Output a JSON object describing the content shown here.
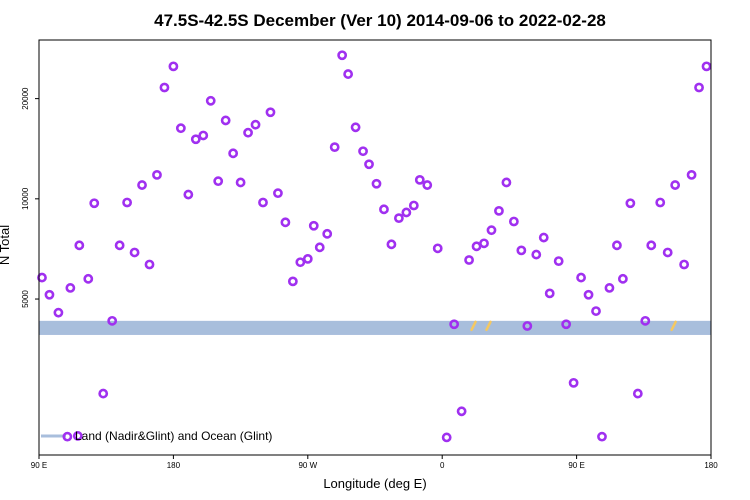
{
  "chart_data": {
    "type": "scatter",
    "title": "47.5S-42.5S December (Ver 10)   2014-09-06 to 2022-02-28",
    "xlabel": "Longitude (deg E)",
    "ylabel": "N Total",
    "x_tick_labels": [
      "90 E",
      "180",
      "90 W",
      "0",
      "90 E",
      "180"
    ],
    "y_tick_labels": [
      "5000",
      "10000",
      "20000"
    ],
    "y_scale": "log",
    "ylim": [
      1700,
      30000
    ],
    "grid": false,
    "legend": {
      "position": "bottom-left",
      "entries": [
        {
          "label": "Land (Nadir&Glint) and Ocean (Glint)"
        }
      ]
    },
    "colors": {
      "points": "#a030f0",
      "band": "#a8bedc",
      "band_marks": "#f5c860"
    },
    "band": {
      "y_low": 3900,
      "y_high": 4300
    },
    "band_marks_x": [
      21,
      31,
      155,
      332,
      333,
      335,
      337,
      338,
      339,
      340,
      341,
      342,
      422,
      492,
      571,
      689,
      722,
      723,
      724
    ],
    "series": [
      {
        "points": [
          [
            -268,
            5800
          ],
          [
            -263,
            5150
          ],
          [
            -257,
            4550
          ],
          [
            -249,
            5400
          ],
          [
            -243,
            7250
          ],
          [
            -237,
            5750
          ],
          [
            -233,
            9700
          ],
          [
            -227,
            2600
          ],
          [
            -221,
            4300
          ],
          [
            -216,
            7250
          ],
          [
            -211,
            9750
          ],
          [
            -206,
            6900
          ],
          [
            -201,
            11000
          ],
          [
            -196,
            6350
          ],
          [
            -191,
            11800
          ],
          [
            -186,
            21600
          ],
          [
            -180,
            25000
          ],
          [
            -175,
            16300
          ],
          [
            -170,
            10300
          ],
          [
            -165,
            15100
          ],
          [
            -160,
            15500
          ],
          [
            -155,
            19700
          ],
          [
            -150,
            11300
          ],
          [
            -145,
            17200
          ],
          [
            -140,
            13700
          ],
          [
            -135,
            11200
          ],
          [
            -130,
            15800
          ],
          [
            -125,
            16700
          ],
          [
            -120,
            9750
          ],
          [
            -115,
            18200
          ],
          [
            -110,
            10400
          ],
          [
            -105,
            8500
          ],
          [
            -100,
            5650
          ],
          [
            -95,
            6450
          ],
          [
            -90,
            6600
          ],
          [
            -86,
            8300
          ],
          [
            -82,
            7150
          ],
          [
            -77,
            7850
          ],
          [
            -72,
            14300
          ],
          [
            -67,
            27000
          ],
          [
            -63,
            23700
          ],
          [
            -58,
            16400
          ],
          [
            -53,
            13900
          ],
          [
            -49,
            12700
          ],
          [
            -44,
            11100
          ],
          [
            -39,
            9300
          ],
          [
            -34,
            7300
          ],
          [
            -29,
            8750
          ],
          [
            -24,
            9100
          ],
          [
            -19,
            9550
          ],
          [
            -15,
            11400
          ],
          [
            -10,
            11000
          ],
          [
            -3,
            7100
          ],
          [
            3,
            1920
          ],
          [
            8,
            4200
          ],
          [
            13,
            2300
          ],
          [
            18,
            6550
          ],
          [
            23,
            7200
          ],
          [
            28,
            7350
          ],
          [
            33,
            8050
          ],
          [
            38,
            9200
          ],
          [
            43,
            11200
          ],
          [
            48,
            8550
          ],
          [
            53,
            7000
          ],
          [
            57,
            4150
          ],
          [
            63,
            6800
          ],
          [
            68,
            7650
          ],
          [
            72,
            5200
          ],
          [
            78,
            6500
          ],
          [
            83,
            4200
          ],
          [
            88,
            2800
          ],
          [
            93,
            5800
          ],
          [
            98,
            5150
          ],
          [
            103,
            4600
          ],
          [
            107,
            1930
          ],
          [
            112,
            5400
          ],
          [
            117,
            7250
          ],
          [
            121,
            5750
          ],
          [
            126,
            9700
          ],
          [
            131,
            2600
          ],
          [
            136,
            4300
          ],
          [
            140,
            7250
          ],
          [
            146,
            9750
          ],
          [
            151,
            6900
          ],
          [
            156,
            11000
          ],
          [
            162,
            6350
          ],
          [
            167,
            11800
          ],
          [
            172,
            21600
          ],
          [
            177,
            25000
          ]
        ]
      }
    ],
    "legend_sample_points": [
      [
        -251,
        1930
      ],
      [
        -244,
        1940
      ]
    ]
  }
}
